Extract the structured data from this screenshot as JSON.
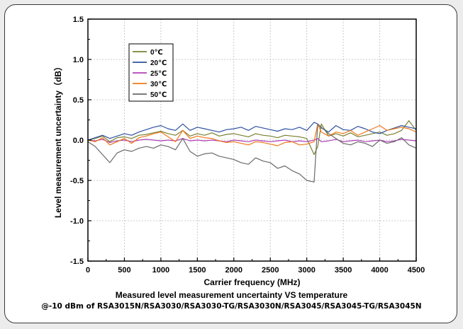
{
  "chart_data": {
    "type": "line",
    "title": "Measured level measurement uncertainty VS temperature",
    "subtitle": "@-10 dBm of RSA3015N/RSA3030/RSA3030-TG/RSA3030N/RSA3045/RSA3045-TG/RSA3045N",
    "xlabel": "Carrier frequency (MHz)",
    "ylabel": "Level measurement uncertainty（dB）",
    "xlim": [
      0,
      4500
    ],
    "ylim": [
      -1.5,
      1.5
    ],
    "xticks": [
      0,
      500,
      1000,
      1500,
      2000,
      2500,
      3000,
      3500,
      4000,
      4500
    ],
    "yticks": [
      -1.5,
      -1.0,
      -0.5,
      0.0,
      0.5,
      1.0,
      1.5
    ],
    "grid": true,
    "legend_position": "top-left",
    "x": [
      0,
      100,
      200,
      300,
      400,
      500,
      600,
      700,
      800,
      900,
      1000,
      1100,
      1200,
      1300,
      1400,
      1500,
      1600,
      1700,
      1800,
      1900,
      2000,
      2100,
      2200,
      2300,
      2400,
      2500,
      2600,
      2700,
      2800,
      2900,
      3000,
      3100,
      3150,
      3200,
      3300,
      3400,
      3500,
      3600,
      3700,
      3800,
      3900,
      4000,
      4100,
      4200,
      4300,
      4400,
      4500
    ],
    "series": [
      {
        "name": "0℃",
        "color": "#7a8030",
        "values": [
          0.0,
          0.02,
          0.05,
          -0.02,
          0.03,
          0.04,
          0.02,
          0.06,
          0.07,
          0.09,
          0.11,
          0.08,
          0.06,
          0.12,
          0.05,
          0.08,
          0.06,
          0.09,
          0.05,
          0.07,
          0.08,
          0.06,
          0.04,
          0.08,
          0.06,
          0.05,
          0.03,
          0.06,
          0.05,
          0.04,
          0.02,
          -0.18,
          -0.08,
          0.2,
          0.05,
          0.08,
          0.05,
          0.09,
          0.04,
          0.06,
          0.08,
          0.1,
          0.06,
          0.08,
          0.12,
          0.24,
          0.12
        ]
      },
      {
        "name": "20℃",
        "color": "#2f52a0",
        "values": [
          0.0,
          0.03,
          0.06,
          0.02,
          0.05,
          0.08,
          0.06,
          0.1,
          0.13,
          0.16,
          0.18,
          0.14,
          0.12,
          0.2,
          0.12,
          0.16,
          0.14,
          0.12,
          0.1,
          0.13,
          0.14,
          0.16,
          0.12,
          0.17,
          0.15,
          0.13,
          0.11,
          0.14,
          0.13,
          0.16,
          0.12,
          0.22,
          0.2,
          0.15,
          0.1,
          0.18,
          0.13,
          0.12,
          0.17,
          0.14,
          0.1,
          0.08,
          0.12,
          0.15,
          0.18,
          0.16,
          0.14
        ]
      },
      {
        "name": "25℃",
        "color": "#b040b8",
        "values": [
          0.0,
          -0.01,
          0.01,
          -0.03,
          -0.01,
          0.0,
          -0.02,
          0.0,
          0.01,
          0.0,
          -0.01,
          0.0,
          -0.01,
          0.02,
          -0.01,
          0.0,
          -0.01,
          0.0,
          -0.01,
          -0.02,
          0.0,
          -0.01,
          -0.02,
          0.0,
          -0.01,
          -0.02,
          -0.01,
          0.0,
          -0.02,
          -0.01,
          -0.02,
          0.0,
          0.02,
          -0.02,
          -0.01,
          0.01,
          -0.02,
          -0.01,
          0.0,
          -0.02,
          -0.01,
          0.0,
          -0.02,
          -0.01,
          0.01,
          0.0,
          -0.01
        ]
      },
      {
        "name": "30℃",
        "color": "#f07818",
        "values": [
          0.0,
          -0.02,
          0.03,
          -0.06,
          -0.02,
          0.02,
          -0.04,
          0.03,
          0.05,
          0.08,
          0.1,
          0.04,
          -0.02,
          0.12,
          0.02,
          0.05,
          0.03,
          0.02,
          -0.01,
          -0.03,
          -0.02,
          -0.04,
          -0.06,
          -0.02,
          -0.03,
          -0.05,
          -0.07,
          -0.03,
          -0.02,
          -0.06,
          -0.05,
          -0.02,
          0.2,
          0.1,
          0.05,
          0.1,
          0.08,
          0.12,
          0.06,
          0.1,
          0.14,
          0.18,
          0.12,
          0.14,
          0.16,
          0.14,
          0.1
        ]
      },
      {
        "name": "50℃",
        "color": "#6a6a6a",
        "values": [
          -0.02,
          -0.08,
          -0.18,
          -0.28,
          -0.16,
          -0.12,
          -0.14,
          -0.1,
          -0.08,
          -0.1,
          -0.06,
          -0.08,
          -0.12,
          0.02,
          -0.14,
          -0.2,
          -0.17,
          -0.16,
          -0.2,
          -0.22,
          -0.24,
          -0.28,
          -0.3,
          -0.22,
          -0.26,
          -0.28,
          -0.35,
          -0.32,
          -0.38,
          -0.42,
          -0.5,
          -0.52,
          0.2,
          0.16,
          0.08,
          0.02,
          -0.04,
          -0.06,
          -0.02,
          -0.04,
          -0.08,
          0.0,
          -0.04,
          -0.02,
          0.03,
          -0.06,
          -0.1
        ]
      }
    ]
  }
}
